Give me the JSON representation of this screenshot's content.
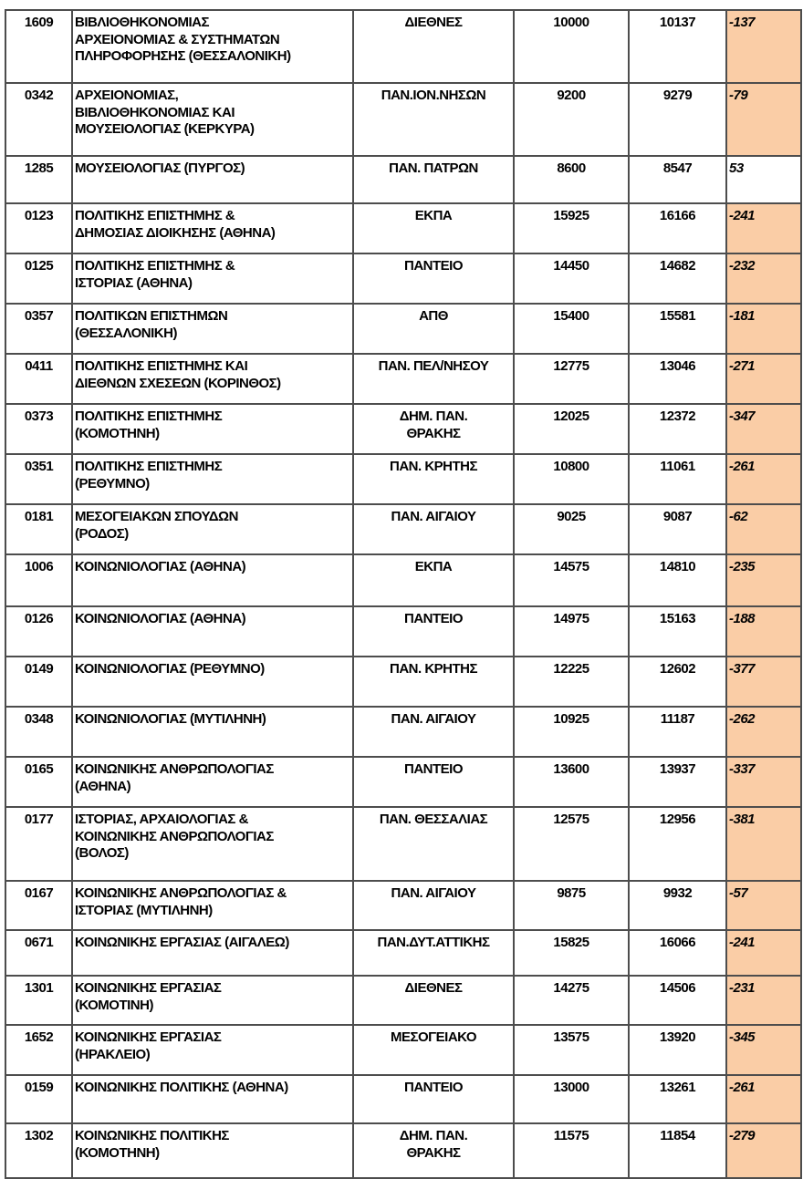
{
  "colors": {
    "highlight_negative": "#FACDA6",
    "border": "#4D4D4D",
    "text": "#000000"
  },
  "table": {
    "rows": [
      {
        "code": "1609",
        "department": "ΒΙΒΛΙΟΘΗΚΟΝΟΜΙΑΣ\nΑΡΧΕΙΟΝΟΜΙΑΣ & ΣΥΣΤΗΜΑΤΩΝ\nΠΛΗΡΟΦΟΡΗΣΗΣ (ΘΕΣΣΑΛΟΝΙΚΗ)",
        "university": "ΔΙΕΘΝΕΣ",
        "value1": "10000",
        "value2": "10137",
        "diff": "-137"
      },
      {
        "code": "0342",
        "department": "ΑΡΧΕΙΟΝΟΜΙΑΣ,\nΒΙΒΛΙΟΘΗΚΟΝΟΜΙΑΣ ΚΑΙ\nΜΟΥΣΕΙΟΛΟΓΙΑΣ (ΚΕΡΚΥΡΑ)",
        "university": "ΠΑΝ.ΙΟΝ.ΝΗΣΩΝ",
        "value1": "9200",
        "value2": "9279",
        "diff": "-79"
      },
      {
        "code": "1285",
        "department": "ΜΟΥΣΕΙΟΛΟΓΙΑΣ (ΠΥΡΓΟΣ)",
        "university": "ΠΑΝ. ΠΑΤΡΩΝ",
        "value1": "8600",
        "value2": "8547",
        "diff": "53"
      },
      {
        "code": "0123",
        "department": "ΠΟΛΙΤΙΚΗΣ ΕΠΙΣΤΗΜΗΣ &\nΔΗΜΟΣΙΑΣ ΔΙΟΙΚΗΣΗΣ (ΑΘΗΝΑ)",
        "university": "ΕΚΠΑ",
        "value1": "15925",
        "value2": "16166",
        "diff": "-241"
      },
      {
        "code": "0125",
        "department": "ΠΟΛΙΤΙΚΗΣ ΕΠΙΣΤΗΜΗΣ &\nΙΣΤΟΡΙΑΣ (ΑΘΗΝΑ)",
        "university": "ΠΑΝΤΕΙΟ",
        "value1": "14450",
        "value2": "14682",
        "diff": "-232"
      },
      {
        "code": "0357",
        "department": "ΠΟΛΙΤΙΚΩΝ ΕΠΙΣΤΗΜΩΝ\n(ΘΕΣΣΑΛΟΝΙΚΗ)",
        "university": "ΑΠΘ",
        "value1": "15400",
        "value2": "15581",
        "diff": "-181"
      },
      {
        "code": "0411",
        "department": "ΠΟΛΙΤΙΚΗΣ ΕΠΙΣΤΗΜΗΣ ΚΑΙ\nΔΙΕΘΝΩΝ ΣΧΕΣΕΩΝ (ΚΟΡΙΝΘΟΣ)",
        "university": "ΠΑΝ. ΠΕΛ/ΝΗΣΟΥ",
        "value1": "12775",
        "value2": "13046",
        "diff": "-271"
      },
      {
        "code": "0373",
        "department": "ΠΟΛΙΤΙΚΗΣ ΕΠΙΣΤΗΜΗΣ\n(ΚΟΜΟΤΗΝΗ)",
        "university": "ΔΗΜ. ΠΑΝ.\nΘΡΑΚΗΣ",
        "value1": "12025",
        "value2": "12372",
        "diff": "-347"
      },
      {
        "code": "0351",
        "department": "ΠΟΛΙΤΙΚΗΣ ΕΠΙΣΤΗΜΗΣ\n(ΡΕΘΥΜΝΟ)",
        "university": "ΠΑΝ. ΚΡΗΤΗΣ",
        "value1": "10800",
        "value2": "11061",
        "diff": "-261"
      },
      {
        "code": "0181",
        "department": "ΜΕΣΟΓΕΙΑΚΩΝ ΣΠΟΥΔΩΝ\n(ΡΟΔΟΣ)",
        "university": "ΠΑΝ. ΑΙΓΑΙΟΥ",
        "value1": "9025",
        "value2": "9087",
        "diff": "-62"
      },
      {
        "code": "1006",
        "department": "ΚΟΙΝΩΝΙΟΛΟΓΙΑΣ (ΑΘΗΝΑ)",
        "university": "ΕΚΠΑ",
        "value1": "14575",
        "value2": "14810",
        "diff": "-235"
      },
      {
        "code": "0126",
        "department": "ΚΟΙΝΩΝΙΟΛΟΓΙΑΣ (ΑΘΗΝΑ)",
        "university": "ΠΑΝΤΕΙΟ",
        "value1": "14975",
        "value2": "15163",
        "diff": "-188"
      },
      {
        "code": "0149",
        "department": "ΚΟΙΝΩΝΙΟΛΟΓΙΑΣ (ΡΕΘΥΜΝΟ)",
        "university": "ΠΑΝ. ΚΡΗΤΗΣ",
        "value1": "12225",
        "value2": "12602",
        "diff": "-377"
      },
      {
        "code": "0348",
        "department": "ΚΟΙΝΩΝΙΟΛΟΓΙΑΣ (ΜΥΤΙΛΗΝΗ)",
        "university": "ΠΑΝ. ΑΙΓΑΙΟΥ",
        "value1": "10925",
        "value2": "11187",
        "diff": "-262"
      },
      {
        "code": "0165",
        "department": "ΚΟΙΝΩΝΙΚΗΣ ΑΝΘΡΩΠΟΛΟΓΙΑΣ\n(ΑΘΗΝΑ)",
        "university": "ΠΑΝΤΕΙΟ",
        "value1": "13600",
        "value2": "13937",
        "diff": "-337"
      },
      {
        "code": "0177",
        "department": "ΙΣΤΟΡΙΑΣ, ΑΡΧΑΙΟΛΟΓΙΑΣ &\nΚΟΙΝΩΝΙΚΗΣ ΑΝΘΡΩΠΟΛΟΓΙΑΣ\n(ΒΟΛΟΣ)",
        "university": "ΠΑΝ. ΘΕΣΣΑΛΙΑΣ",
        "value1": "12575",
        "value2": "12956",
        "diff": "-381"
      },
      {
        "code": "0167",
        "department": "ΚΟΙΝΩΝΙΚΗΣ ΑΝΘΡΩΠΟΛΟΓΙΑΣ &\nΙΣΤΟΡΙΑΣ (ΜΥΤΙΛΗΝΗ)",
        "university": "ΠΑΝ. ΑΙΓΑΙΟΥ",
        "value1": "9875",
        "value2": "9932",
        "diff": "-57"
      },
      {
        "code": "0671",
        "department": "ΚΟΙΝΩΝΙΚΗΣ ΕΡΓΑΣΙΑΣ (ΑΙΓΑΛΕΩ)",
        "university": "ΠΑΝ.ΔΥΤ.ΑΤΤΙΚΗΣ",
        "value1": "15825",
        "value2": "16066",
        "diff": "-241"
      },
      {
        "code": "1301",
        "department": "ΚΟΙΝΩΝΙΚΗΣ ΕΡΓΑΣΙΑΣ\n(ΚΟΜΟΤΙΝΗ)",
        "university": "ΔΙΕΘΝΕΣ",
        "value1": "14275",
        "value2": "14506",
        "diff": "-231"
      },
      {
        "code": "1652",
        "department": "ΚΟΙΝΩΝΙΚΗΣ ΕΡΓΑΣΙΑΣ\n(ΗΡΑΚΛΕΙΟ)",
        "university": "ΜΕΣΟΓΕΙΑΚΟ",
        "value1": "13575",
        "value2": "13920",
        "diff": "-345"
      },
      {
        "code": "0159",
        "department": "ΚΟΙΝΩΝΙΚΗΣ ΠΟΛΙΤΙΚΗΣ (ΑΘΗΝΑ)",
        "university": "ΠΑΝΤΕΙΟ",
        "value1": "13000",
        "value2": "13261",
        "diff": "-261"
      },
      {
        "code": "1302",
        "department": "ΚΟΙΝΩΝΙΚΗΣ ΠΟΛΙΤΙΚΗΣ\n(ΚΟΜΟΤΗΝΗ)",
        "university": "ΔΗΜ. ΠΑΝ.\nΘΡΑΚΗΣ",
        "value1": "11575",
        "value2": "11854",
        "diff": "-279"
      }
    ]
  }
}
